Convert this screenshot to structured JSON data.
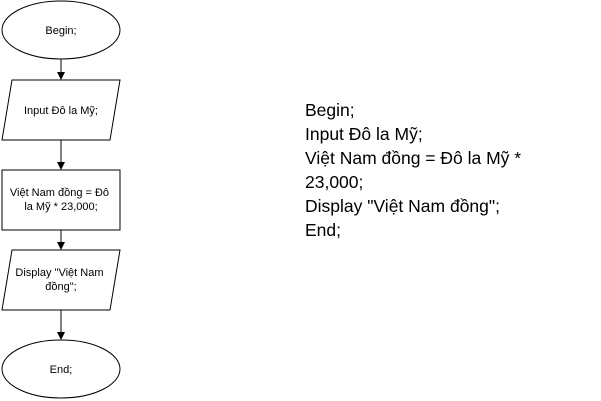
{
  "flowchart": {
    "nodes": [
      {
        "id": "begin",
        "shape": "terminal",
        "lines": [
          "Begin;"
        ]
      },
      {
        "id": "input",
        "shape": "parallelogram",
        "lines": [
          "Input Đô la Mỹ;"
        ]
      },
      {
        "id": "process",
        "shape": "rectangle",
        "lines": [
          "Việt Nam đồng = Đô",
          "la Mỹ * 23,000;"
        ]
      },
      {
        "id": "display",
        "shape": "parallelogram",
        "lines": [
          "Display \"Việt Nam",
          "đồng\";"
        ]
      },
      {
        "id": "end",
        "shape": "terminal",
        "lines": [
          "End;"
        ]
      }
    ]
  },
  "pseudocode": {
    "lines": [
      "Begin;",
      "Input Đô la Mỹ;",
      "Việt Nam đồng = Đô la Mỹ *",
      "23,000;",
      "Display \"Việt Nam đồng\";",
      "End;"
    ]
  }
}
